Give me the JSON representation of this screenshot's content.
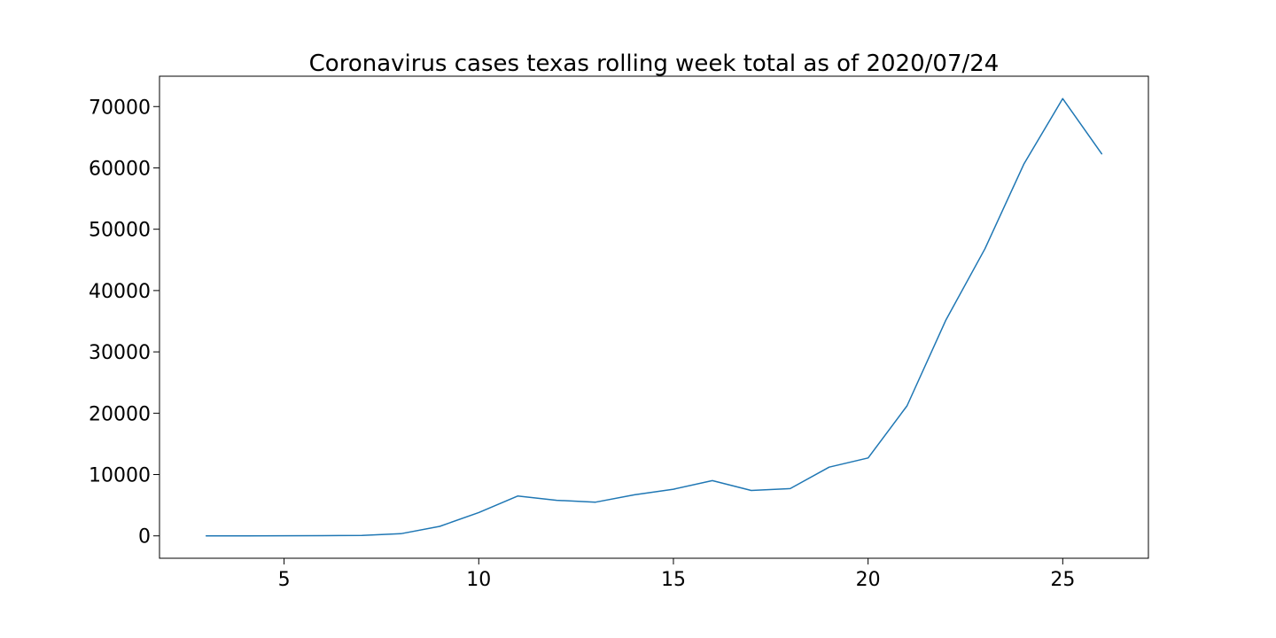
{
  "chart_data": {
    "type": "line",
    "title": "Coronavirus cases texas rolling week total as of 2020/07/24",
    "xlabel": "",
    "ylabel": "",
    "xlim": [
      1.8,
      27.2
    ],
    "ylim": [
      -3650,
      74950
    ],
    "x_ticks": [
      5,
      10,
      15,
      20,
      25
    ],
    "y_ticks": [
      0,
      10000,
      20000,
      30000,
      40000,
      50000,
      60000,
      70000
    ],
    "x_tick_labels": [
      "5",
      "10",
      "15",
      "20",
      "25"
    ],
    "y_tick_labels": [
      "0",
      "10000",
      "20000",
      "30000",
      "40000",
      "50000",
      "60000",
      "70000"
    ],
    "grid": false,
    "legend": "none",
    "line_color": "#1f77b4",
    "series": [
      {
        "x": [
          3,
          4,
          5,
          6,
          7,
          8,
          9,
          10,
          11,
          12,
          13,
          14,
          15,
          16,
          17,
          18,
          19,
          20,
          21,
          22,
          23,
          24,
          25,
          26
        ],
        "values": [
          0,
          0,
          20,
          30,
          80,
          350,
          1550,
          3800,
          6500,
          5800,
          5500,
          6700,
          7600,
          9000,
          7400,
          7700,
          11200,
          12700,
          21200,
          35200,
          46800,
          60600,
          71300,
          62300
        ]
      }
    ]
  }
}
